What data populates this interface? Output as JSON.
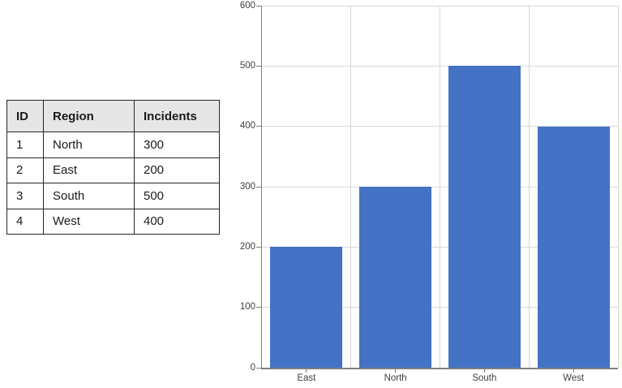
{
  "table": {
    "headers": [
      "ID",
      "Region",
      "Incidents"
    ],
    "rows": [
      [
        "1",
        "North",
        "300"
      ],
      [
        "2",
        "East",
        "200"
      ],
      [
        "3",
        "South",
        "500"
      ],
      [
        "4",
        "West",
        "400"
      ]
    ],
    "header_bg": "#e7e6e6",
    "border_color": "#262626"
  },
  "chart_data": {
    "type": "bar",
    "categories": [
      "East",
      "North",
      "South",
      "West"
    ],
    "values": [
      200,
      300,
      500,
      400
    ],
    "title": "",
    "xlabel": "",
    "ylabel": "",
    "ylim": [
      0,
      600
    ],
    "ytick_step": 100,
    "grid": true,
    "legend_position": "none",
    "bar_color": "#4472c4",
    "gridline_color": "#d9d9d9",
    "axis_line_color": "#7f7f7f",
    "tick_label_color": "#404040"
  }
}
